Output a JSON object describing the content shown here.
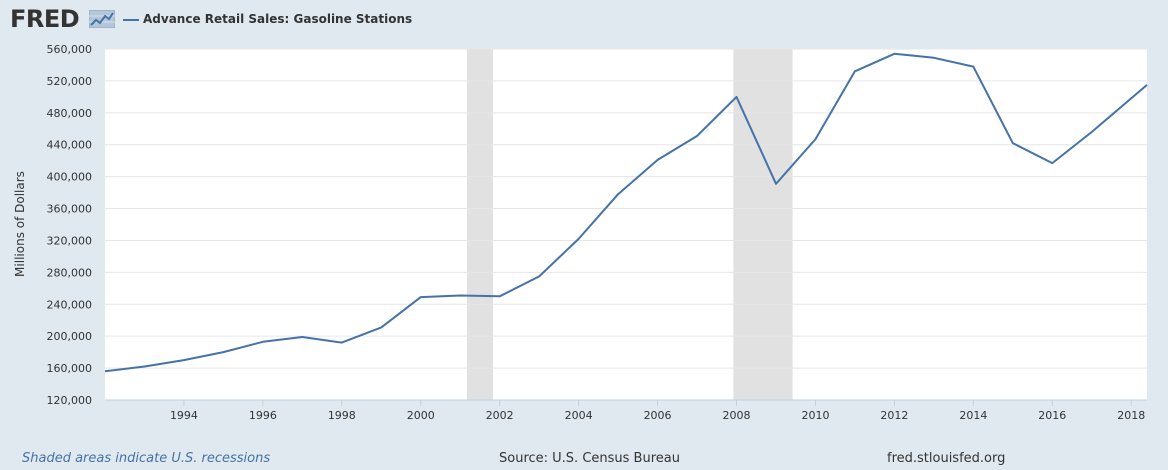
{
  "header": {
    "logo_text": "FRED",
    "series_title": "Advance Retail Sales: Gasoline Stations"
  },
  "footer": {
    "recession_note": "Shaded areas indicate U.S. recessions",
    "source": "Source: U.S. Census Bureau",
    "url": "fred.stlouisfed.org"
  },
  "colors": {
    "background": "#e1e9f0",
    "plot_background": "#ffffff",
    "series": "#4572a7",
    "recession": "#e1e1e1",
    "grid": "#e6e6e6"
  },
  "chart_data": {
    "type": "line",
    "title": "Advance Retail Sales: Gasoline Stations",
    "xlabel": "",
    "ylabel": "Millions of Dollars",
    "ylim": [
      120000,
      560000
    ],
    "xlim": [
      1992,
      2018.4
    ],
    "grid": true,
    "yticks": [
      120000,
      160000,
      200000,
      240000,
      280000,
      320000,
      360000,
      400000,
      440000,
      480000,
      520000,
      560000
    ],
    "ytick_labels": [
      "120,000",
      "160,000",
      "200,000",
      "240,000",
      "280,000",
      "320,000",
      "360,000",
      "400,000",
      "440,000",
      "480,000",
      "520,000",
      "560,000"
    ],
    "xticks": [
      1994,
      1996,
      1998,
      2000,
      2002,
      2004,
      2006,
      2008,
      2010,
      2012,
      2014,
      2016,
      2018
    ],
    "xtick_labels": [
      "1994",
      "1996",
      "1998",
      "2000",
      "2002",
      "2004",
      "2006",
      "2008",
      "2010",
      "2012",
      "2014",
      "2016",
      "2018"
    ],
    "recessions": [
      [
        2001.17,
        2001.83
      ],
      [
        2007.92,
        2009.42
      ]
    ],
    "series": [
      {
        "name": "Advance Retail Sales: Gasoline Stations",
        "x": [
          1992,
          1993,
          1994,
          1995,
          1996,
          1997,
          1998,
          1999,
          2000,
          2001,
          2002,
          2003,
          2004,
          2005,
          2006,
          2007,
          2008,
          2009,
          2010,
          2011,
          2012,
          2013,
          2014,
          2015,
          2016,
          2017,
          2018.4
        ],
        "values": [
          156000,
          162000,
          170000,
          180000,
          193000,
          199000,
          192000,
          211000,
          249000,
          251000,
          250000,
          275000,
          322000,
          378000,
          421000,
          451000,
          500000,
          391000,
          447000,
          532000,
          554000,
          549000,
          538000,
          442000,
          417000,
          456000,
          515000
        ]
      }
    ]
  }
}
